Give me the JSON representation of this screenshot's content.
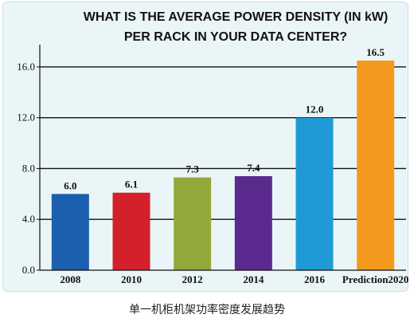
{
  "caption": "单一机柜机架功率密度发展趋势",
  "chart_data": {
    "type": "bar",
    "title_lines": [
      "WHAT IS THE AVERAGE POWER DENSITY (IN kW)",
      "PER RACK IN  YOUR DATA CENTER?"
    ],
    "categories": [
      "2008",
      "2010",
      "2012",
      "2014",
      "2016",
      "Prediction2020"
    ],
    "values": [
      6.0,
      6.1,
      7.3,
      7.4,
      12.0,
      16.5
    ],
    "value_labels": [
      "6.0",
      "6.1",
      "7.3",
      "7.4",
      "12.0",
      "16.5"
    ],
    "yticks": [
      "0.0",
      "4.0",
      "8.0",
      "12.0",
      "16.0"
    ],
    "ylim": [
      0,
      17.5
    ],
    "grid": true,
    "colors": [
      "#1b5fae",
      "#d3202a",
      "#93a83a",
      "#5a2a8e",
      "#1f9ad6",
      "#f39a1e"
    ]
  }
}
